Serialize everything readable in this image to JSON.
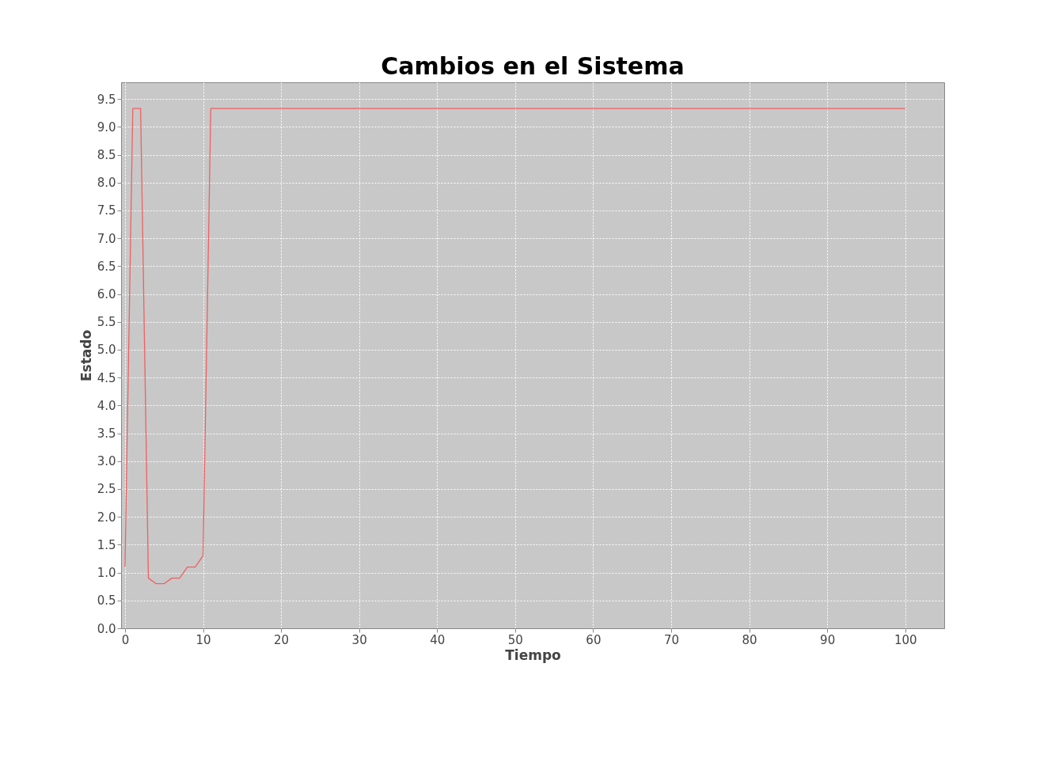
{
  "chart_data": {
    "type": "line",
    "title": "Cambios en el Sistema",
    "xlabel": "Tiempo",
    "ylabel": "Estado",
    "x": [
      0,
      1,
      2,
      3,
      4,
      5,
      6,
      7,
      8,
      9,
      10,
      11,
      100
    ],
    "series": [
      {
        "color": "#f06060",
        "values": [
          1.1,
          9.33,
          9.33,
          0.9,
          0.8,
          0.8,
          0.9,
          0.9,
          1.1,
          1.1,
          1.3,
          9.33,
          9.33
        ]
      }
    ],
    "xlim": [
      -0.5,
      105
    ],
    "ylim": [
      0,
      9.8
    ],
    "xticks": [
      0,
      10,
      20,
      30,
      40,
      50,
      60,
      70,
      80,
      90,
      100
    ],
    "yticks": [
      {
        "value": 0,
        "label": "0.0"
      },
      0.5,
      {
        "value": 1,
        "label": "1.0"
      },
      1.5,
      {
        "value": 2,
        "label": "2.0"
      },
      2.5,
      {
        "value": 3,
        "label": "3.0"
      },
      3.5,
      {
        "value": 4,
        "label": "4.0"
      },
      4.5,
      {
        "value": 5,
        "label": "5.0"
      },
      5.5,
      {
        "value": 6,
        "label": "6.0"
      },
      6.5,
      {
        "value": 7,
        "label": "7.0"
      },
      7.5,
      {
        "value": 8,
        "label": "8.0"
      },
      8.5,
      {
        "value": 9,
        "label": "9.0"
      },
      9.5
    ],
    "grid": true,
    "marker": "none",
    "line_style": "solid"
  }
}
